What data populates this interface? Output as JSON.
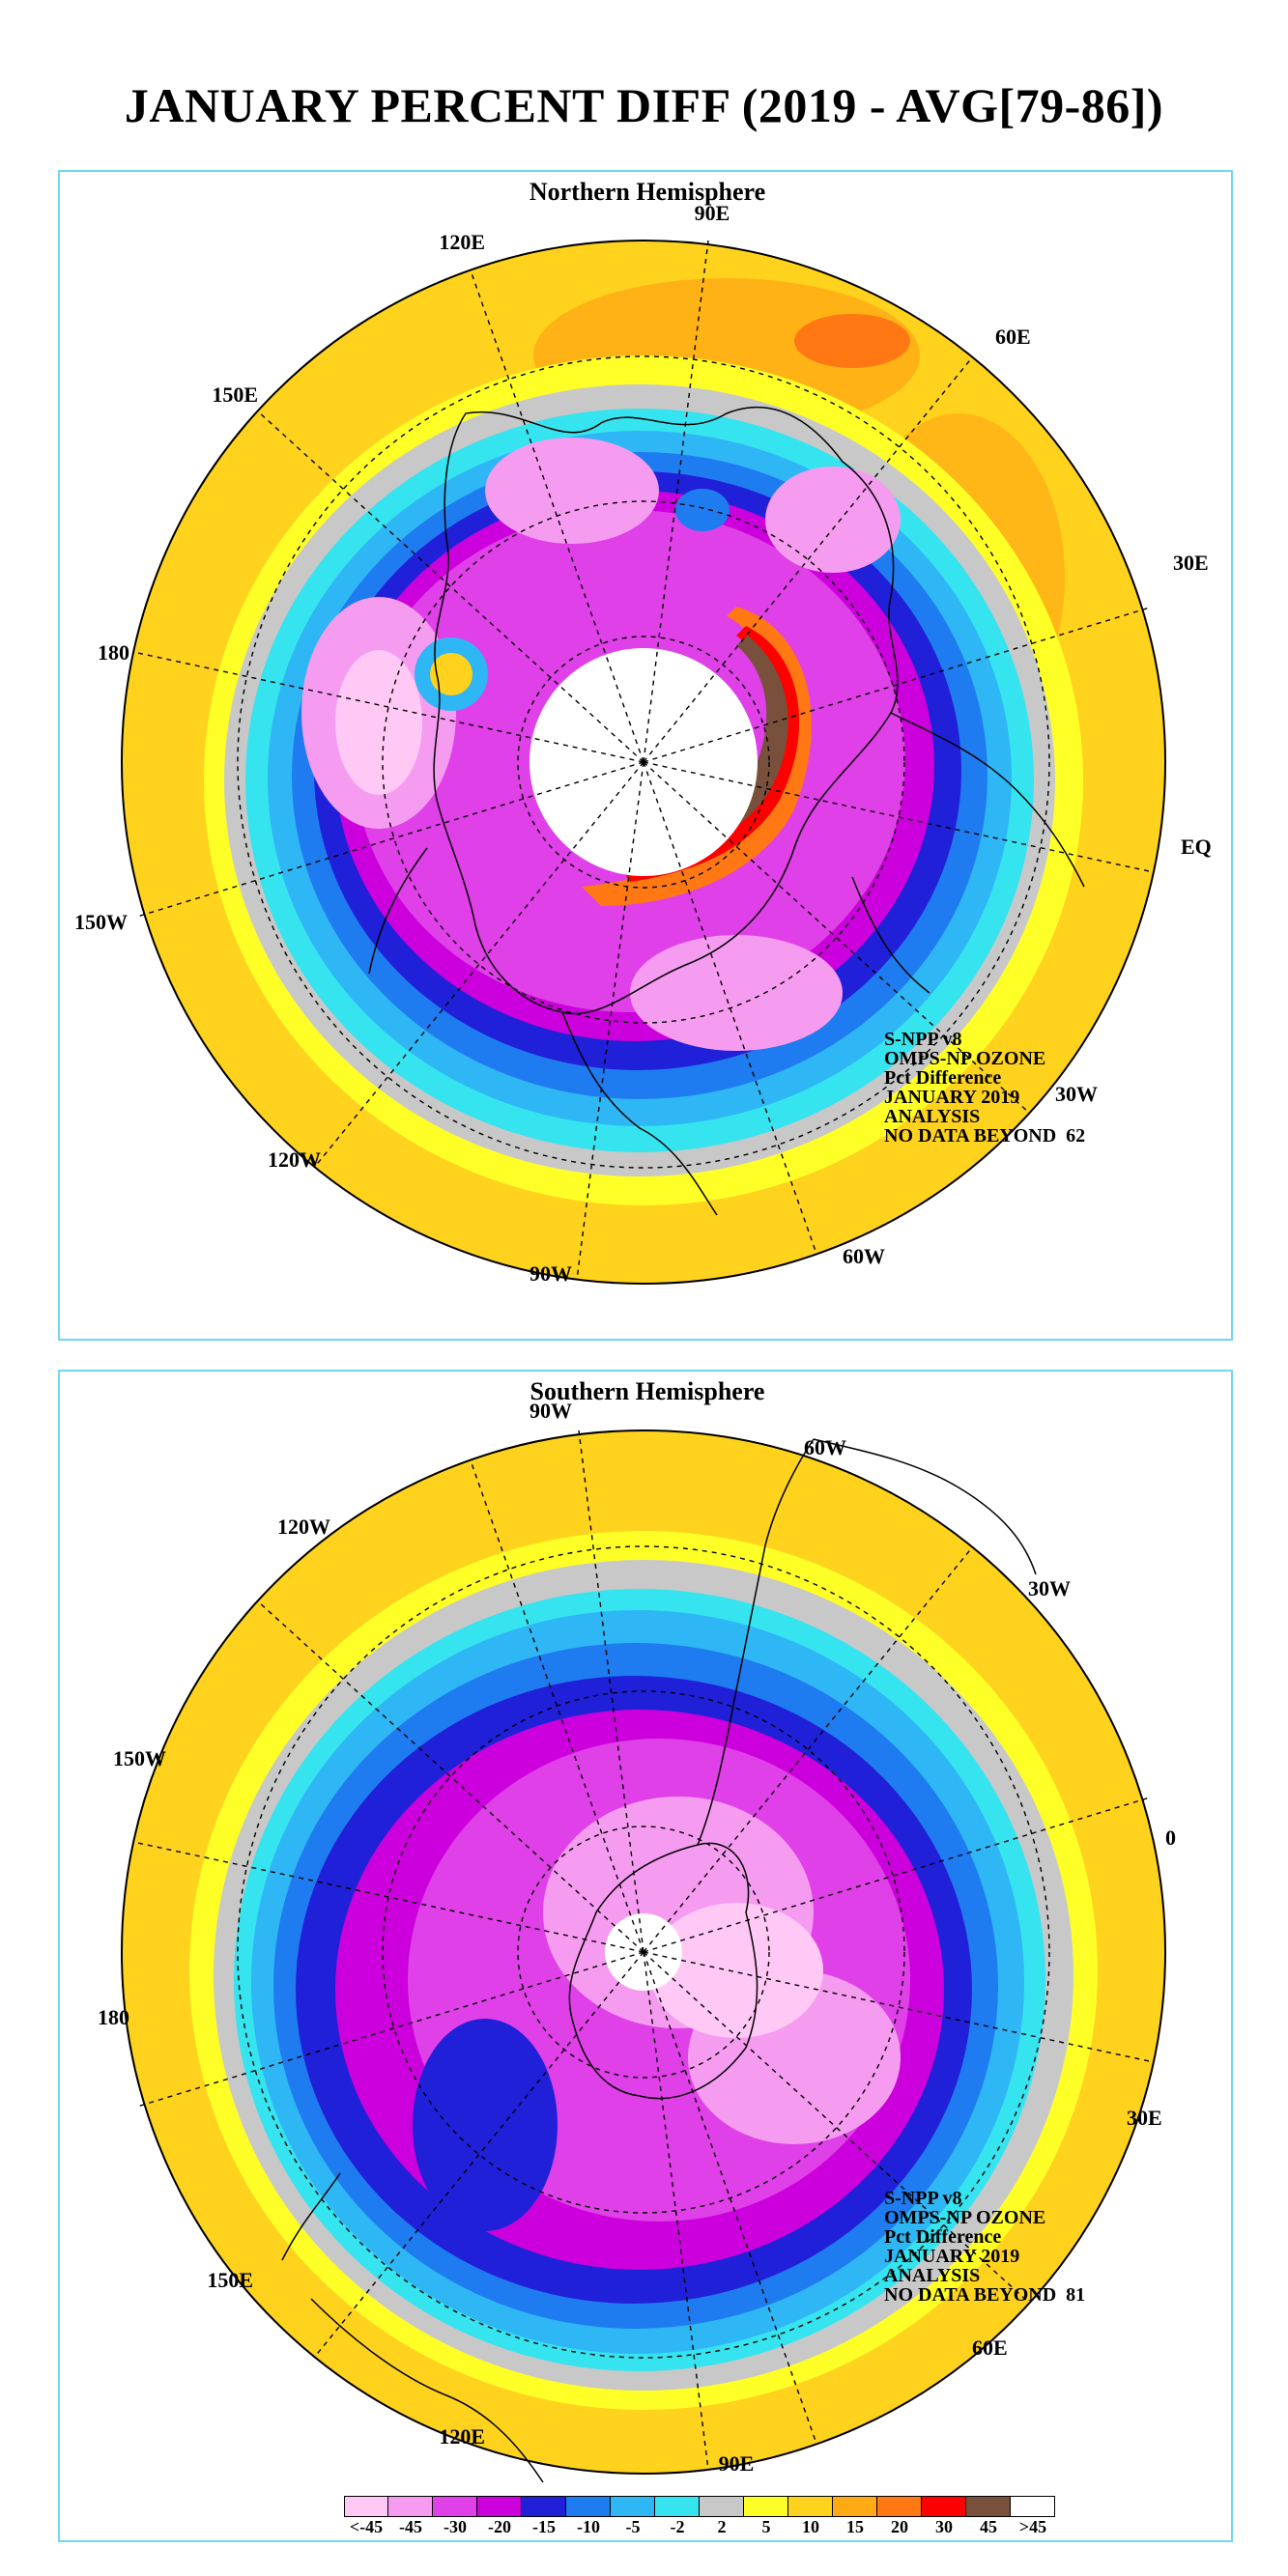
{
  "title": "JANUARY PERCENT DIFF (2019 - AVG[79-86])",
  "north": {
    "title": "Northern Hemisphere",
    "longitude_labels": [
      "90E",
      "60E",
      "30E",
      "EQ",
      "30W",
      "60W",
      "90W",
      "120W",
      "150W",
      "180",
      "150E",
      "120E"
    ],
    "info": [
      "S-NPP v8",
      "OMPS-NP OZONE",
      "Pct Difference",
      "JANUARY 2019",
      "ANALYSIS",
      "NO DATA BEYOND  62"
    ]
  },
  "south": {
    "title": "Southern Hemisphere",
    "longitude_labels": [
      "90W",
      "60W",
      "30W",
      "0",
      "30E",
      "60E",
      "90E",
      "120E",
      "150E",
      "180",
      "150W",
      "120W"
    ],
    "info": [
      "S-NPP v8",
      "OMPS-NP OZONE",
      "Pct Difference",
      "JANUARY 2019",
      "ANALYSIS",
      "NO DATA BEYOND  81"
    ]
  },
  "colorbar": {
    "labels": [
      "<-45",
      "-45",
      "-30",
      "-20",
      "-15",
      "-10",
      "-5",
      "-2",
      "2",
      "5",
      "10",
      "15",
      "20",
      "30",
      "45",
      ">45"
    ],
    "colors": [
      "#ffc8f5",
      "#f59cf0",
      "#e040e8",
      "#cc00dc",
      "#2020d8",
      "#1e7cf0",
      "#2fb6f5",
      "#36e4f0",
      "#c8c8c8",
      "#ffff28",
      "#ffd21e",
      "#ffaa14",
      "#ff7814",
      "#ff0000",
      "#78503c",
      "#ffffff"
    ]
  }
}
